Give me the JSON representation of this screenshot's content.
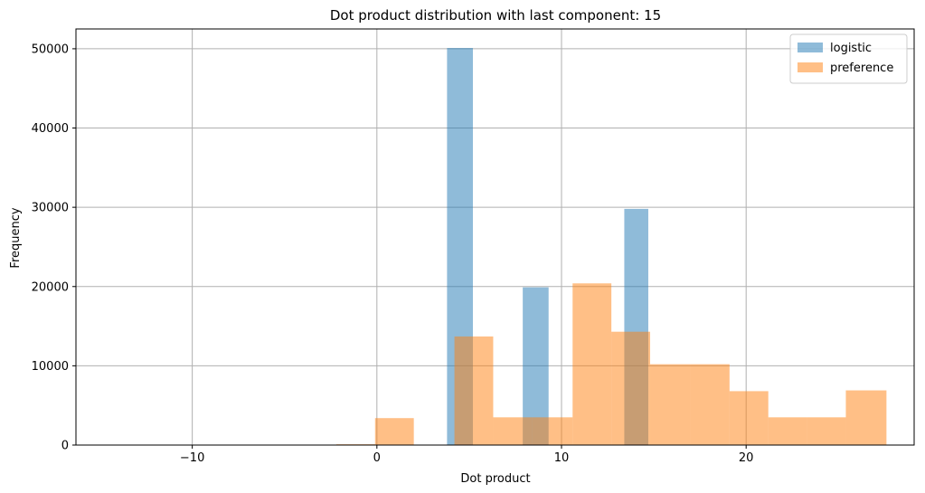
{
  "chart_data": {
    "type": "bar",
    "title": "Dot product distribution with last component: 15",
    "xlabel": "Dot product",
    "ylabel": "Frequency",
    "xlim": [
      -16.3,
      29.1
    ],
    "ylim": [
      0,
      52500
    ],
    "xticks": [
      -10,
      0,
      10,
      20
    ],
    "xtick_labels": [
      "−10",
      "0",
      "10",
      "20"
    ],
    "yticks": [
      0,
      10000,
      20000,
      30000,
      40000,
      50000
    ],
    "ytick_labels": [
      "0",
      "10000",
      "20000",
      "30000",
      "40000",
      "50000"
    ],
    "grid": true,
    "legend_position": "top-right",
    "series": [
      {
        "name": "logistic",
        "color": "#1f77b4",
        "alpha": 0.5,
        "bins": [
          {
            "x0": 3.8,
            "x1": 5.2,
            "value": 50100
          },
          {
            "x0": 7.9,
            "x1": 9.3,
            "value": 19900
          },
          {
            "x0": 13.4,
            "x1": 14.7,
            "value": 29800
          }
        ]
      },
      {
        "name": "preference",
        "color": "#ff7f0e",
        "alpha": 0.5,
        "bins": [
          {
            "x0": -15.0,
            "x1": -12.9,
            "value": 0
          },
          {
            "x0": -12.9,
            "x1": -10.7,
            "value": 0
          },
          {
            "x0": -10.7,
            "x1": -8.6,
            "value": 0
          },
          {
            "x0": -8.6,
            "x1": -6.5,
            "value": 0
          },
          {
            "x0": -6.5,
            "x1": -4.3,
            "value": 0
          },
          {
            "x0": -4.3,
            "x1": -2.2,
            "value": 0
          },
          {
            "x0": -2.2,
            "x1": -0.1,
            "value": 100
          },
          {
            "x0": -0.1,
            "x1": 2.0,
            "value": 3400
          },
          {
            "x0": 2.0,
            "x1": 4.2,
            "value": 0
          },
          {
            "x0": 4.2,
            "x1": 6.3,
            "value": 13700
          },
          {
            "x0": 6.3,
            "x1": 8.4,
            "value": 3500
          },
          {
            "x0": 8.4,
            "x1": 10.6,
            "value": 3500
          },
          {
            "x0": 10.6,
            "x1": 12.7,
            "value": 20400
          },
          {
            "x0": 12.7,
            "x1": 14.8,
            "value": 14300
          },
          {
            "x0": 14.8,
            "x1": 17.0,
            "value": 10200
          },
          {
            "x0": 17.0,
            "x1": 19.1,
            "value": 10200
          },
          {
            "x0": 19.1,
            "x1": 21.2,
            "value": 6800
          },
          {
            "x0": 21.2,
            "x1": 23.3,
            "value": 3500
          },
          {
            "x0": 23.3,
            "x1": 25.4,
            "value": 3500
          },
          {
            "x0": 25.4,
            "x1": 27.6,
            "value": 6900
          }
        ]
      }
    ]
  }
}
